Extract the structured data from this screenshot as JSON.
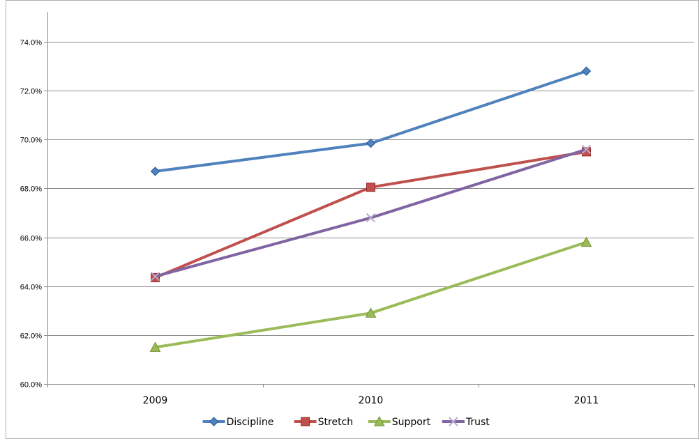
{
  "chart_data": {
    "type": "line",
    "title": "",
    "xlabel": "",
    "ylabel": "",
    "categories": [
      "2009",
      "2010",
      "2011"
    ],
    "ylim": [
      60.0,
      75.0
    ],
    "yticks": [
      "60.0%",
      "62.0%",
      "64.0%",
      "66.0%",
      "68.0%",
      "70.0%",
      "72.0%",
      "74.0%"
    ],
    "grid": "horizontal",
    "legend": "bottom",
    "series": [
      {
        "name": "Discipline",
        "values": [
          68.7,
          69.85,
          72.8
        ],
        "color": "#4F81BD",
        "marker": "diamond"
      },
      {
        "name": "Stretch",
        "values": [
          64.35,
          68.05,
          69.5
        ],
        "color": "#C0504D",
        "marker": "square"
      },
      {
        "name": "Support",
        "values": [
          61.5,
          62.9,
          65.8
        ],
        "color": "#9BBB59",
        "marker": "triangle"
      },
      {
        "name": "Trust",
        "values": [
          64.4,
          66.8,
          69.6
        ],
        "color": "#8064A2",
        "marker": "x"
      }
    ]
  }
}
